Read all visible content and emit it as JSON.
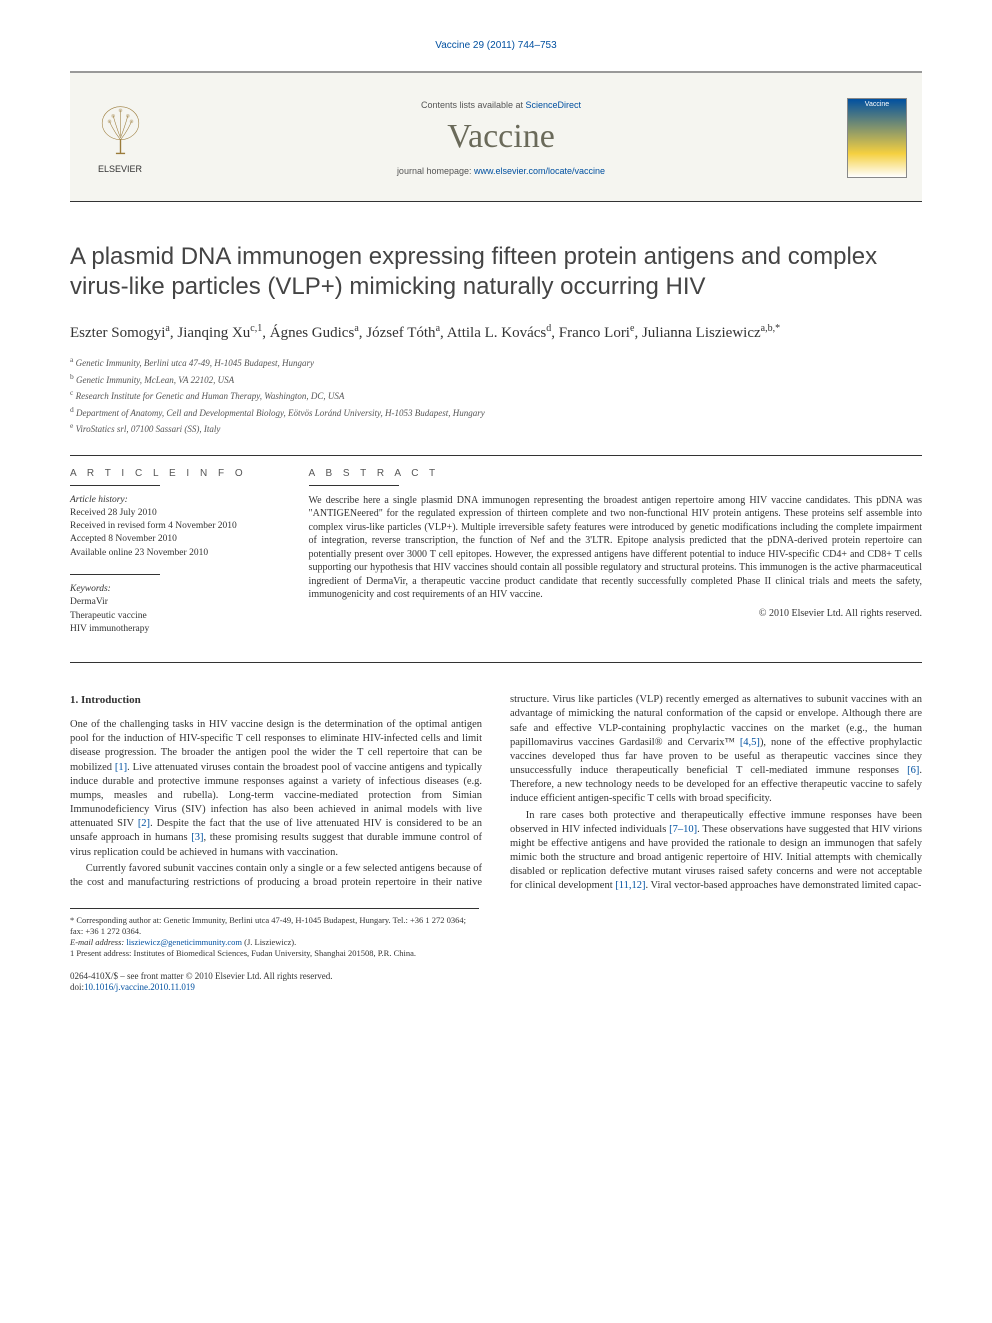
{
  "header": {
    "citation": "Vaccine 29 (2011) 744–753",
    "contents_prefix": "Contents lists available at ",
    "contents_link": "ScienceDirect",
    "journal": "Vaccine",
    "homepage_prefix": "journal homepage: ",
    "homepage_url": "www.elsevier.com/locate/vaccine",
    "publisher": "ELSEVIER",
    "cover_label": "Vaccine"
  },
  "title": "A plasmid DNA immunogen expressing fifteen protein antigens and complex virus-like particles (VLP+) mimicking naturally occurring HIV",
  "authors_html": "Eszter Somogyi<sup>a</sup>, Jianqing Xu<sup>c,1</sup>, Ágnes Gudics<sup>a</sup>, József Tóth<sup>a</sup>, Attila L. Kovács<sup>d</sup>, Franco Lori<sup>e</sup>, Julianna Lisziewicz<sup>a,b,*</sup>",
  "affiliations": [
    {
      "sup": "a",
      "text": "Genetic Immunity, Berlini utca 47-49, H-1045 Budapest, Hungary"
    },
    {
      "sup": "b",
      "text": "Genetic Immunity, McLean, VA 22102, USA"
    },
    {
      "sup": "c",
      "text": "Research Institute for Genetic and Human Therapy, Washington, DC, USA"
    },
    {
      "sup": "d",
      "text": "Department of Anatomy, Cell and Developmental Biology, Eötvös Loránd University, H-1053 Budapest, Hungary"
    },
    {
      "sup": "e",
      "text": "ViroStatics srl, 07100 Sassari (SS), Italy"
    }
  ],
  "article_info": {
    "heading": "A R T I C L E   I N F O",
    "history_heading": "Article history:",
    "history": [
      "Received 28 July 2010",
      "Received in revised form 4 November 2010",
      "Accepted 8 November 2010",
      "Available online 23 November 2010"
    ],
    "keywords_heading": "Keywords:",
    "keywords": [
      "DermaVir",
      "Therapeutic vaccine",
      "HIV immunotherapy"
    ]
  },
  "abstract": {
    "heading": "A B S T R A C T",
    "text": "We describe here a single plasmid DNA immunogen representing the broadest antigen repertoire among HIV vaccine candidates. This pDNA was \"ANTIGENeered\" for the regulated expression of thirteen complete and two non-functional HIV protein antigens. These proteins self assemble into complex virus-like particles (VLP+). Multiple irreversible safety features were introduced by genetic modifications including the complete impairment of integration, reverse transcription, the function of Nef and the 3'LTR. Epitope analysis predicted that the pDNA-derived protein repertoire can potentially present over 3000 T cell epitopes. However, the expressed antigens have different potential to induce HIV-specific CD4+ and CD8+ T cells supporting our hypothesis that HIV vaccines should contain all possible regulatory and structural proteins. This immunogen is the active pharmaceutical ingredient of DermaVir, a therapeutic vaccine product candidate that recently successfully completed Phase II clinical trials and meets the safety, immunogenicity and cost requirements of an HIV vaccine.",
    "copyright": "© 2010 Elsevier Ltd. All rights reserved."
  },
  "body": {
    "section_heading": "1. Introduction",
    "p1": "One of the challenging tasks in HIV vaccine design is the determination of the optimal antigen pool for the induction of HIV-specific T cell responses to eliminate HIV-infected cells and limit disease progression. The broader the antigen pool the wider the T cell repertoire that can be mobilized [1]. Live attenuated viruses contain the broadest pool of vaccine antigens and typically induce durable and protective immune responses against a variety of infectious diseases (e.g. mumps, measles and rubella). Long-term vaccine-mediated protection from Simian Immunodeficiency Virus (SIV) infection has also been achieved in animal models with live attenuated SIV [2]. Despite the fact that the use of live attenuated HIV is considered to be an unsafe approach in humans [3], these promising results suggest that durable immune control of virus replication could be achieved in humans with vaccination.",
    "p2": "Currently favored subunit vaccines contain only a single or a few selected antigens because of the cost and manufacturing restrictions of producing a broad protein repertoire in their native structure. Virus like particles (VLP) recently emerged as alternatives to subunit vaccines with an advantage of mimicking the natural conformation of the capsid or envelope. Although there are safe and effective VLP-containing prophylactic vaccines on the market (e.g., the human papillomavirus vaccines Gardasil® and Cervarix™ [4,5]), none of the effective prophylactic vaccines developed thus far have proven to be useful as therapeutic vaccines since they unsuccessfully induce therapeutically beneficial T cell-mediated immune responses [6]. Therefore, a new technology needs to be developed for an effective therapeutic vaccine to safely induce efficient antigen-specific T cells with broad specificity.",
    "p3": "In rare cases both protective and therapeutically effective immune responses have been observed in HIV infected individuals [7–10]. These observations have suggested that HIV virions might be effective antigens and have provided the rationale to design an immunogen that safely mimic both the structure and broad antigenic repertoire of HIV. Initial attempts with chemically disabled or replication defective mutant viruses raised safety concerns and were not acceptable for clinical development [11,12]. Viral vector-based approaches have demonstrated limited capac-"
  },
  "footnotes": {
    "corresponding": "* Corresponding author at: Genetic Immunity, Berlini utca 47-49, H-1045 Budapest, Hungary. Tel.: +36 1 272 0364; fax: +36 1 272 0364.",
    "email_label": "E-mail address: ",
    "email": "lisziewicz@geneticimmunity.com",
    "email_after": " (J. Lisziewicz).",
    "present": "1 Present address: Institutes of Biomedical Sciences, Fudan University, Shanghai 201508, P.R. China."
  },
  "footer": {
    "line1": "0264-410X/$ – see front matter © 2010 Elsevier Ltd. All rights reserved.",
    "doi_label": "doi:",
    "doi": "10.1016/j.vaccine.2010.11.019"
  },
  "colors": {
    "link": "#0050a0",
    "journal": "#6a6a5a",
    "text": "#333333",
    "masthead_bg": "#f5f5f0"
  }
}
